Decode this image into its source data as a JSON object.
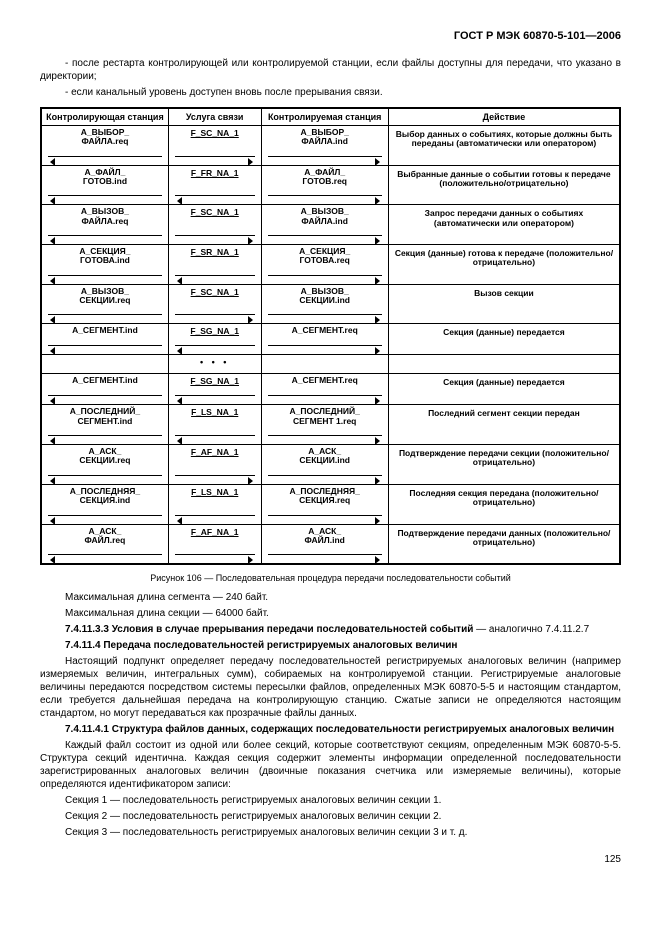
{
  "header": "ГОСТ Р МЭК 60870-5-101—2006",
  "intro_lines": [
    "- после рестарта контролирующей или контролируемой станции, если файлы доступны для передачи, что указано в директории;",
    "- если канальный уровень доступен вновь после прерывания связи."
  ],
  "table": {
    "headers": [
      "Контролирующая станция",
      "Услуга связи",
      "Контролируемая станция",
      "Действие"
    ],
    "col_widths": [
      "22%",
      "16%",
      "22%",
      "40%"
    ],
    "rows": [
      {
        "l": "А_ВЫБОР_\nФАЙЛА.req",
        "ld": "l",
        "svc": "F_SC_NA_1",
        "sd": "r",
        "r": "А_ВЫБОР_\nФАЙЛА.ind",
        "rd": "r",
        "a": "Выбор данных о событиях, которые должны быть переданы (автоматически или оператором)"
      },
      {
        "l": "А_ФАЙЛ_\nГОТОВ.ind",
        "ld": "l",
        "svc": "F_FR_NA_1",
        "sd": "l",
        "r": "А_ФАЙЛ_\nГОТОВ.req",
        "rd": "r",
        "a": "Выбранные данные о событии готовы к передаче (положительно/отрицательно)"
      },
      {
        "l": "А_ВЫЗОВ_\nФАЙЛА.req",
        "ld": "l",
        "svc": "F_SC_NA_1",
        "sd": "r",
        "r": "А_ВЫЗОВ_\nФАЙЛА.ind",
        "rd": "r",
        "a": "Запрос передачи данных о событиях (автоматически или оператором)"
      },
      {
        "l": "А_СЕКЦИЯ_\nГОТОВА.ind",
        "ld": "l",
        "svc": "F_SR_NA_1",
        "sd": "l",
        "r": "А_СЕКЦИЯ_\nГОТОВА.req",
        "rd": "r",
        "a": "Секция (данные) готова к передаче (положительно/отрицательно)"
      },
      {
        "l": "А_ВЫЗОВ_\nСЕКЦИИ.req",
        "ld": "l",
        "svc": "F_SC_NA_1",
        "sd": "r",
        "r": "А_ВЫЗОВ_\nСЕКЦИИ.ind",
        "rd": "r",
        "a": "Вызов секции"
      },
      {
        "l": "А_СЕГМЕНТ.ind",
        "ld": "l",
        "svc": "F_SG_NA_1",
        "sd": "l",
        "r": "А_СЕГМЕНТ.req",
        "rd": "r",
        "a": "Секция (данные) передается"
      },
      {
        "l": "",
        "ld": "",
        "svc": "• • •",
        "sd": "",
        "r": "",
        "rd": "",
        "a": ""
      },
      {
        "l": "А_СЕГМЕНТ.ind",
        "ld": "l",
        "svc": "F_SG_NA_1",
        "sd": "l",
        "r": "А_СЕГМЕНТ.req",
        "rd": "r",
        "a": "Секция (данные) передается"
      },
      {
        "l": "А_ПОСЛЕДНИЙ_\nСЕГМЕНТ.ind",
        "ld": "l",
        "svc": "F_LS_NA_1",
        "sd": "l",
        "r": "А_ПОСЛЕДНИЙ_\nСЕГМЕНТ 1.req",
        "rd": "r",
        "a": "Последний сегмент секции передан"
      },
      {
        "l": "А_АСК_\nСЕКЦИИ.req",
        "ld": "l",
        "svc": "F_AF_NA_1",
        "sd": "r",
        "r": "А_АСК_\nСЕКЦИИ.ind",
        "rd": "r",
        "a": "Подтверждение передачи секции (положительно/отрицательно)"
      },
      {
        "l": "А_ПОСЛЕДНЯЯ_\nСЕКЦИЯ.ind",
        "ld": "l",
        "svc": "F_LS_NA_1",
        "sd": "l",
        "r": "А_ПОСЛЕДНЯЯ_\nСЕКЦИЯ.req",
        "rd": "r",
        "a": "Последняя секция передана (положительно/отрицательно)"
      },
      {
        "l": "А_АСК_\nФАЙЛ.req",
        "ld": "l",
        "svc": "F_AF_NA_1",
        "sd": "r",
        "r": "А_АСК_\nФАЙЛ.ind",
        "rd": "r",
        "a": "Подтверждение передачи данных (положительно/отрицательно)"
      }
    ]
  },
  "caption": "Рисунок 106 — Последовательная процедура передачи последовательности событий",
  "after_table": [
    "Максимальная длина сегмента — 240 байт.",
    "Максимальная длина секции — 64000 байт."
  ],
  "sec_7_4_11_3_3": {
    "title": "7.4.11.3.3 Условия в случае прерывания передачи последовательностей событий",
    "cont": " — аналогично 7.4.11.2.7"
  },
  "sec_7_4_11_4": {
    "title": "7.4.11.4 Передача последовательностей регистрируемых аналоговых величин",
    "body": "Настоящий подпункт определяет передачу последовательностей регистрируемых аналоговых величин (например измеряемых величин, интегральных сумм), собираемых на контролируемой станции. Регистрируемые аналоговые величины передаются посредством системы пересылки файлов, определенных МЭК 60870-5-5 и настоящим стандартом, если требуется дальнейшая передача на контролирующую станцию. Сжатые записи не определяются настоящим стандартом, но могут передаваться как прозрачные файлы данных."
  },
  "sec_7_4_11_4_1": {
    "title": "7.4.11.4.1 Структура файлов данных, содержащих последовательности регистрируемых аналоговых величин",
    "body": "Каждый файл состоит из одной или более секций, которые соответствуют секциям, определенным МЭК 60870-5-5. Структура секций идентична. Каждая секция содержит элементы информации определенной последовательности зарегистрированных аналоговых величин (двоичные показания счетчика или измеряемые величины), которые определяются идентификатором записи:",
    "items": [
      "Секция 1 — последовательность регистрируемых аналоговых величин секции 1.",
      "Секция 2 — последовательность регистрируемых аналоговых величин секции 2.",
      "Секция 3 — последовательность регистрируемых аналоговых величин секции 3 и т. д."
    ]
  },
  "page": "125"
}
